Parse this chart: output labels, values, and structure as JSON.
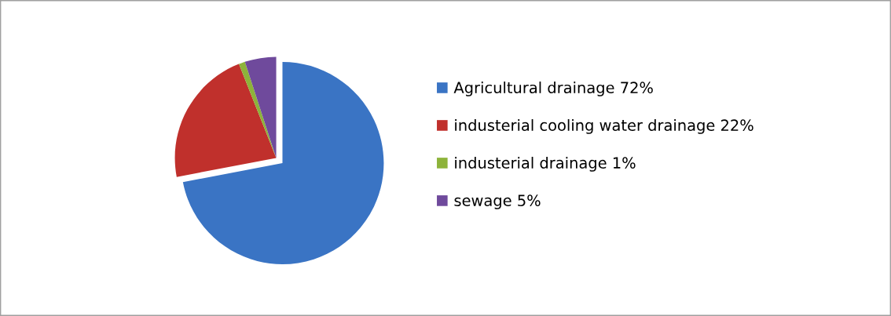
{
  "chart_data": {
    "type": "pie",
    "categories": [
      "Agricultural drainage 72%",
      "industerial cooling water drainage 22%",
      "industerial drainage 1%",
      "sewage 5%"
    ],
    "values": [
      72,
      22,
      1,
      5
    ],
    "colors": [
      "#3a74c4",
      "#c0302c",
      "#8db33a",
      "#6f4a9c"
    ],
    "legend": "right"
  }
}
